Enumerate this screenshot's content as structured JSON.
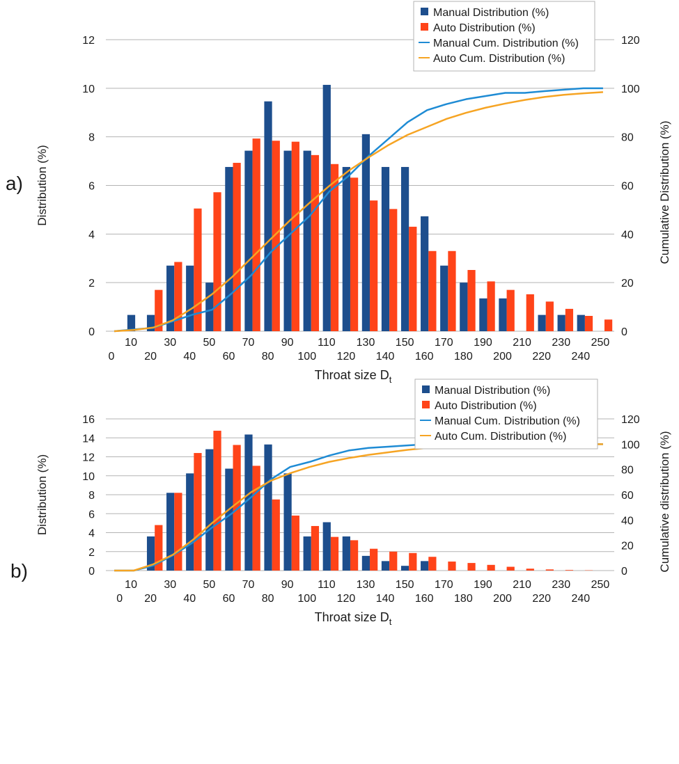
{
  "colors": {
    "manual_bar": "#1d4e8d",
    "auto_bar": "#ff4419",
    "manual_line": "#1e8bd4",
    "auto_line": "#f6a423",
    "grid": "#b3b3b3",
    "legend_border": "#b3b3b3"
  },
  "chart_data": [
    {
      "panel_label": "a)",
      "type": "bar",
      "xlabel": "Throat size D",
      "xlabel_subscript": "t",
      "ylabel": "Distribution (%)",
      "y2label": "Cumulative Distribution (%)",
      "ylim": [
        0,
        12
      ],
      "y_ticks": [
        0,
        2,
        4,
        6,
        8,
        10,
        12
      ],
      "y2lim": [
        0,
        120
      ],
      "y2_ticks": [
        0,
        20,
        40,
        60,
        80,
        100,
        120
      ],
      "x_ticks_lower": [
        "0",
        "20",
        "40",
        "60",
        "80",
        "100",
        "120",
        "140",
        "160",
        "180",
        "200",
        "220",
        "240"
      ],
      "x_ticks_upper": [
        "10",
        "30",
        "50",
        "70",
        "90",
        "110",
        "130",
        "150",
        "170",
        "190",
        "210",
        "230",
        "250"
      ],
      "grid": "horizontal",
      "legend_position": "top-right",
      "series": [
        {
          "name": "Manual Distribution (%)",
          "kind": "bar",
          "values": [
            0,
            0.67,
            0.67,
            2.7,
            2.7,
            2.0,
            6.76,
            7.43,
            9.46,
            7.43,
            7.43,
            10.14,
            6.76,
            8.11,
            6.76,
            6.76,
            4.73,
            2.7,
            2.0,
            1.35,
            1.35,
            0,
            0.67,
            0.67,
            0.67,
            0
          ]
        },
        {
          "name": "Auto Distribution (%)",
          "kind": "bar",
          "values": [
            0,
            0,
            1.7,
            2.85,
            5.05,
            5.72,
            6.93,
            7.93,
            7.84,
            7.8,
            7.25,
            6.88,
            6.32,
            5.38,
            5.03,
            4.3,
            3.3,
            3.3,
            2.52,
            2.05,
            1.7,
            1.52,
            1.22,
            0.92,
            0.63,
            0.48
          ]
        },
        {
          "name": "Manual Cum. Distribution (%)",
          "kind": "line",
          "x": [
            0,
            10,
            20,
            30,
            40,
            50,
            60,
            70,
            80,
            90,
            100,
            110,
            120,
            130,
            140,
            150,
            160,
            170,
            180,
            190,
            200,
            210,
            220,
            230,
            240,
            250
          ],
          "values": [
            0,
            0.7,
            1.4,
            4.1,
            6.8,
            8.8,
            15.5,
            23,
            32.5,
            40,
            47.5,
            57.5,
            64,
            72,
            79,
            86,
            91,
            93.5,
            95.5,
            96.8,
            98.1,
            98.1,
            98.8,
            99.4,
            100,
            100
          ]
        },
        {
          "name": "Auto Cum. Distribution (%)",
          "kind": "line",
          "x": [
            0,
            10,
            20,
            30,
            40,
            50,
            60,
            70,
            80,
            90,
            100,
            110,
            120,
            130,
            140,
            150,
            160,
            170,
            180,
            190,
            200,
            210,
            220,
            230,
            240,
            250
          ],
          "values": [
            0,
            0.5,
            1.5,
            4.5,
            9.5,
            15.2,
            22.1,
            30,
            37.9,
            45.7,
            52.9,
            59.8,
            66.1,
            71.5,
            76.5,
            80.8,
            84.1,
            87.4,
            89.9,
            92,
            93.7,
            95.2,
            96.4,
            97.3,
            97.9,
            98.4
          ]
        }
      ]
    },
    {
      "panel_label": "b)",
      "type": "bar",
      "xlabel": "Throat size D",
      "xlabel_subscript": "t",
      "ylabel": "Distribution (%)",
      "y2label": "Cumulative distribution (%)",
      "ylim": [
        0,
        16
      ],
      "y_ticks": [
        0,
        2,
        4,
        6,
        8,
        10,
        12,
        14,
        16
      ],
      "y2lim": [
        0,
        120
      ],
      "y2_ticks": [
        0,
        20,
        40,
        60,
        80,
        100,
        120
      ],
      "x_ticks_lower": [
        "0",
        "20",
        "40",
        "60",
        "80",
        "100",
        "120",
        "140",
        "160",
        "180",
        "200",
        "220",
        "240"
      ],
      "x_ticks_upper": [
        "10",
        "30",
        "50",
        "70",
        "90",
        "110",
        "130",
        "150",
        "170",
        "190",
        "210",
        "230",
        "250"
      ],
      "grid": "horizontal",
      "legend_position": "top-right",
      "series": [
        {
          "name": "Manual Distribution (%)",
          "kind": "bar",
          "values": [
            0,
            0,
            3.6,
            8.2,
            10.25,
            12.8,
            10.75,
            14.35,
            13.3,
            10.25,
            3.6,
            5.1,
            3.6,
            1.55,
            1.0,
            0.5,
            1.0,
            0,
            0,
            0,
            0,
            0,
            0,
            0,
            0,
            0
          ]
        },
        {
          "name": "Auto Distribution (%)",
          "kind": "bar",
          "values": [
            0,
            0,
            4.8,
            8.2,
            12.4,
            14.75,
            13.25,
            11.05,
            7.5,
            5.8,
            4.7,
            3.55,
            3.2,
            2.3,
            2.0,
            1.85,
            1.45,
            0.95,
            0.8,
            0.6,
            0.4,
            0.2,
            0.12,
            0.06,
            0.03,
            0
          ]
        },
        {
          "name": "Manual Cum. Distribution (%)",
          "kind": "line",
          "x": [
            0,
            10,
            20,
            30,
            40,
            50,
            60,
            70,
            80,
            90,
            100,
            110,
            120,
            130,
            140,
            150,
            160,
            170,
            180,
            190,
            200,
            210,
            220,
            230,
            240,
            250
          ],
          "values": [
            0,
            0,
            4,
            12,
            22,
            34,
            45,
            58,
            72,
            82,
            86,
            91,
            95,
            97,
            98,
            99,
            100,
            100,
            100,
            100,
            100,
            100,
            100,
            100,
            100,
            100
          ]
        },
        {
          "name": "Auto Cum. Distribution (%)",
          "kind": "line",
          "x": [
            0,
            10,
            20,
            30,
            40,
            50,
            60,
            70,
            80,
            90,
            100,
            110,
            120,
            130,
            140,
            150,
            160,
            170,
            180,
            190,
            200,
            210,
            220,
            230,
            240,
            250
          ],
          "values": [
            0,
            0,
            5,
            12.5,
            24,
            37.5,
            50,
            62,
            71,
            77,
            82,
            86,
            89,
            91.5,
            93.5,
            95.5,
            97,
            98,
            98.7,
            99.2,
            99.6,
            99.8,
            100,
            100,
            100,
            100
          ]
        }
      ]
    }
  ]
}
